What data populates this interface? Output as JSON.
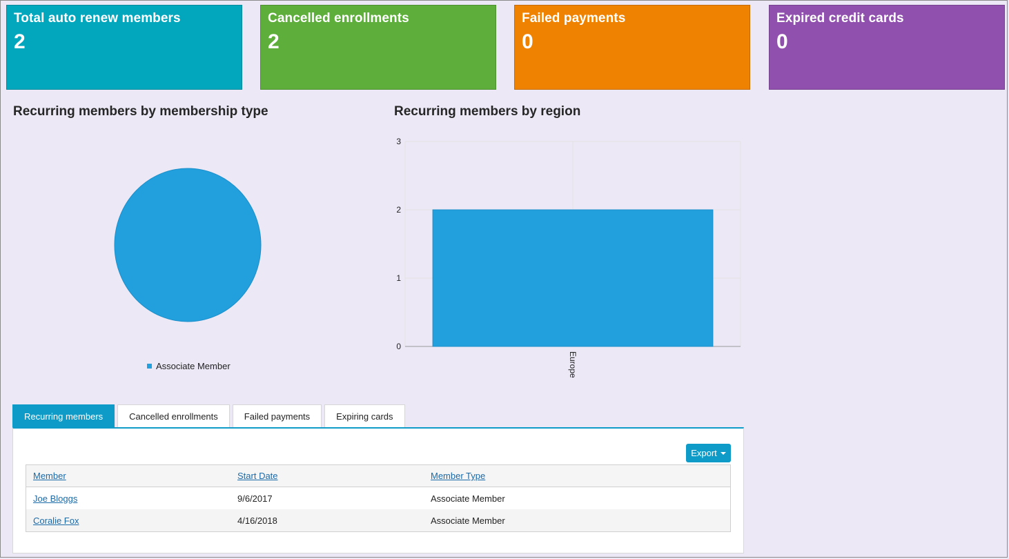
{
  "tiles": [
    {
      "title": "Total auto renew members",
      "value": "2",
      "color": "#03a7bd"
    },
    {
      "title": "Cancelled enrollments",
      "value": "2",
      "color": "#5eae3b"
    },
    {
      "title": "Failed payments",
      "value": "0",
      "color": "#f08201"
    },
    {
      "title": "Expired credit cards",
      "value": "0",
      "color": "#8f51ad"
    }
  ],
  "pie_section": {
    "title": "Recurring members by membership type"
  },
  "bar_section": {
    "title": "Recurring members by region"
  },
  "chart_data": [
    {
      "type": "pie",
      "title": "Recurring members by membership type",
      "slices": [
        {
          "label": "Associate Member",
          "value": 2,
          "color": "#229fdd"
        }
      ],
      "legend": "bottom"
    },
    {
      "type": "bar",
      "title": "Recurring members by region",
      "categories": [
        "Europe"
      ],
      "values": [
        2
      ],
      "color": "#229fdd",
      "ylim": [
        0,
        3
      ],
      "yticks": [
        "0",
        "1",
        "2",
        "3"
      ],
      "grid": true
    }
  ],
  "tabs": [
    {
      "label": "Recurring members",
      "active": true
    },
    {
      "label": "Cancelled enrollments",
      "active": false
    },
    {
      "label": "Failed payments",
      "active": false
    },
    {
      "label": "Expiring cards",
      "active": false
    }
  ],
  "table": {
    "export_label": "Export",
    "columns": [
      "Member",
      "Start Date",
      "Member Type"
    ],
    "rows": [
      {
        "member": "Joe Bloggs",
        "start_date": "9/6/2017",
        "member_type": "Associate Member"
      },
      {
        "member": "Coralie Fox",
        "start_date": "4/16/2018",
        "member_type": "Associate Member"
      }
    ]
  }
}
